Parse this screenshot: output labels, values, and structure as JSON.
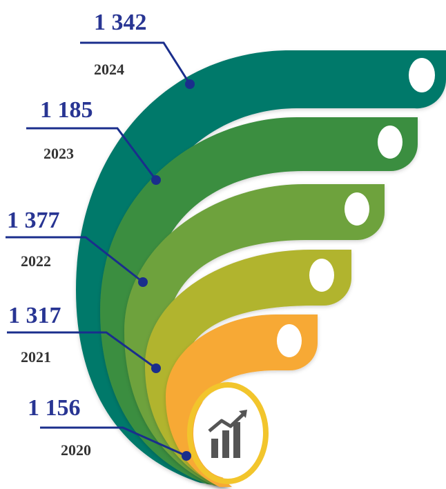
{
  "chart_data": {
    "type": "bar",
    "categories": [
      "2020",
      "2021",
      "2022",
      "2023",
      "2024"
    ],
    "values": [
      1156,
      1317,
      1377,
      1185,
      1342
    ],
    "value_labels": [
      "1 156",
      "1 317",
      "1 377",
      "1 185",
      "1 342"
    ]
  },
  "colors": {
    "value_text": "#283593",
    "year_text": "#333333",
    "leader": "#1a2e8c",
    "ribbons": [
      "#f7a934",
      "#b1b42f",
      "#6ea23d",
      "#3a8e40",
      "#00796b"
    ],
    "ring": "#f2c52c",
    "badge": "#ffffff",
    "icon": "#555555"
  },
  "icon": "bar-chart-rising-icon"
}
